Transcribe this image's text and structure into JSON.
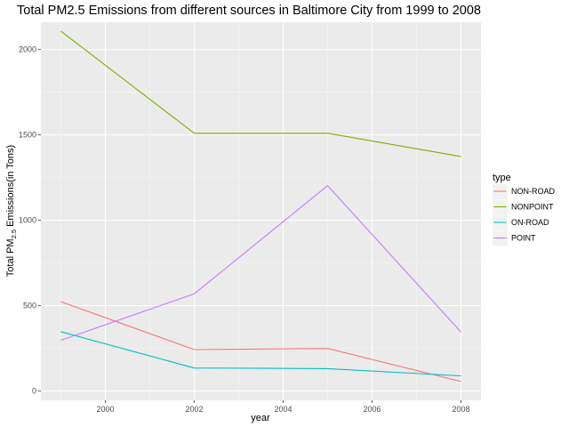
{
  "chart_data": {
    "type": "line",
    "title": "Total PM2.5 Emissions from different sources in Baltimore City from 1999 to 2008",
    "xlabel": "year",
    "ylabel": {
      "prefix": "Total PM",
      "subscript": "2.5",
      "suffix": " Emissions(in Tons)"
    },
    "x": [
      1999,
      2002,
      2005,
      2008
    ],
    "xlim": [
      1998.55,
      2008.45
    ],
    "ylim": [
      -55,
      2160
    ],
    "x_ticks": [
      2000,
      2002,
      2004,
      2006,
      2008
    ],
    "y_ticks": [
      0,
      500,
      1000,
      1500,
      2000
    ],
    "grid": true,
    "legend_position": "right",
    "legend_title": "type",
    "series": [
      {
        "name": "NON-ROAD",
        "color": "#f8766d",
        "values": [
          522.9,
          242.1,
          248.9,
          55.8
        ]
      },
      {
        "name": "NONPOINT",
        "color": "#7cae00",
        "values": [
          2107.6,
          1509.5,
          1509.5,
          1373.2
        ]
      },
      {
        "name": "ON-ROAD",
        "color": "#00bfc4",
        "values": [
          346.8,
          134.3,
          130.4,
          88.3
        ]
      },
      {
        "name": "POINT",
        "color": "#c77cff",
        "values": [
          296.8,
          569.3,
          1202.5,
          344.98
        ]
      }
    ]
  }
}
